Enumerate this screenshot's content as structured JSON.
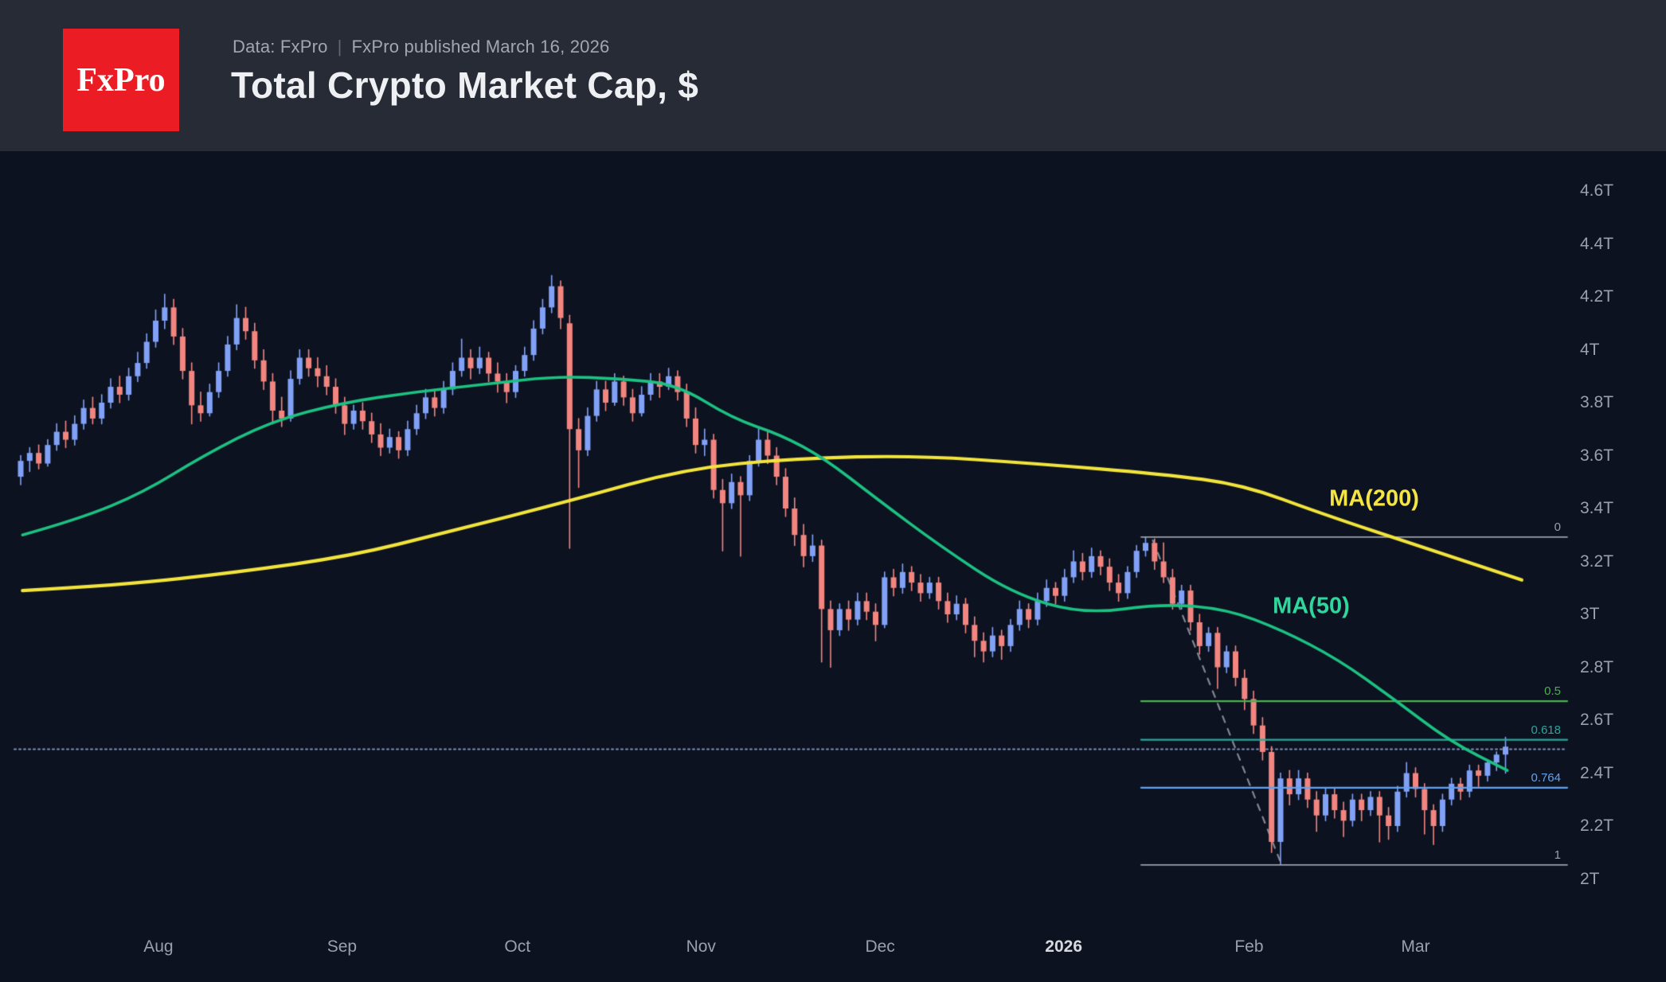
{
  "header": {
    "logo_text": "FxPro",
    "data_source": "Data: FxPro",
    "separator": "|",
    "published": "FxPro published March 16, 2026",
    "title": "Total Crypto Market Cap, $"
  },
  "colors": {
    "header_bg": "#272b36",
    "chart_bg": "#0c1220",
    "logo_bg": "#ec1c24",
    "candle_up": "#81a1f7",
    "candle_down": "#f2857f",
    "ma50_line": "#1dc182",
    "ma50_label": "#2ed79c",
    "ma200_line": "#f2e43c",
    "ma200_label": "#f4e544",
    "fib_gray": "#9b9fa8",
    "fib_half": "#4caf50",
    "fib_618": "#2aa79b",
    "fib_764": "#62a3f0",
    "current_price_dotted": "#7d91be",
    "trend_dashed": "#a0a5af",
    "axis_text": "#9aa0ab",
    "axis_text_bold": "#d6d9de"
  },
  "chart_data": {
    "type": "candlestick",
    "title": "Total Crypto Market Cap, $",
    "unit": "trillion USD",
    "ylim": [
      2.0,
      4.6
    ],
    "grid": false,
    "y_ticks": [
      {
        "label": "4.6T",
        "value": 4.6
      },
      {
        "label": "4.4T",
        "value": 4.4
      },
      {
        "label": "4.2T",
        "value": 4.2
      },
      {
        "label": "4T",
        "value": 4.0
      },
      {
        "label": "3.8T",
        "value": 3.8
      },
      {
        "label": "3.6T",
        "value": 3.6
      },
      {
        "label": "3.4T",
        "value": 3.4
      },
      {
        "label": "3.2T",
        "value": 3.2
      },
      {
        "label": "3T",
        "value": 3.0
      },
      {
        "label": "2.8T",
        "value": 2.8
      },
      {
        "label": "2.6T",
        "value": 2.6
      },
      {
        "label": "2.4T",
        "value": 2.4
      },
      {
        "label": "2.2T",
        "value": 2.2
      },
      {
        "label": "2T",
        "value": 2.0
      }
    ],
    "x_ticks": [
      {
        "label": "Aug",
        "index": 15.3,
        "bold": false
      },
      {
        "label": "Sep",
        "index": 35.7,
        "bold": false
      },
      {
        "label": "Oct",
        "index": 55.2,
        "bold": false
      },
      {
        "label": "Nov",
        "index": 75.6,
        "bold": false
      },
      {
        "label": "Dec",
        "index": 95.5,
        "bold": false
      },
      {
        "label": "2026",
        "index": 115.9,
        "bold": true
      },
      {
        "label": "Feb",
        "index": 136.5,
        "bold": false
      },
      {
        "label": "Mar",
        "index": 155.0,
        "bold": false
      }
    ],
    "candles": [
      [
        3.52,
        3.6,
        3.49,
        3.58
      ],
      [
        3.58,
        3.63,
        3.54,
        3.61
      ],
      [
        3.61,
        3.64,
        3.55,
        3.57
      ],
      [
        3.57,
        3.66,
        3.56,
        3.64
      ],
      [
        3.64,
        3.72,
        3.62,
        3.69
      ],
      [
        3.69,
        3.73,
        3.63,
        3.66
      ],
      [
        3.66,
        3.75,
        3.64,
        3.72
      ],
      [
        3.72,
        3.81,
        3.7,
        3.78
      ],
      [
        3.78,
        3.82,
        3.72,
        3.74
      ],
      [
        3.74,
        3.83,
        3.72,
        3.8
      ],
      [
        3.8,
        3.89,
        3.78,
        3.86
      ],
      [
        3.86,
        3.9,
        3.8,
        3.83
      ],
      [
        3.83,
        3.93,
        3.81,
        3.9
      ],
      [
        3.9,
        3.99,
        3.88,
        3.95
      ],
      [
        3.95,
        4.06,
        3.93,
        4.03
      ],
      [
        4.03,
        4.15,
        4.01,
        4.11
      ],
      [
        4.11,
        4.21,
        4.08,
        4.16
      ],
      [
        4.16,
        4.19,
        4.02,
        4.05
      ],
      [
        4.05,
        4.08,
        3.89,
        3.92
      ],
      [
        3.92,
        3.95,
        3.72,
        3.79
      ],
      [
        3.79,
        3.84,
        3.73,
        3.76
      ],
      [
        3.76,
        3.87,
        3.75,
        3.84
      ],
      [
        3.84,
        3.95,
        3.82,
        3.92
      ],
      [
        3.92,
        4.05,
        3.9,
        4.02
      ],
      [
        4.02,
        4.17,
        4.0,
        4.12
      ],
      [
        4.12,
        4.16,
        4.04,
        4.07
      ],
      [
        4.07,
        4.1,
        3.93,
        3.96
      ],
      [
        3.96,
        4.0,
        3.85,
        3.88
      ],
      [
        3.88,
        3.91,
        3.72,
        3.77
      ],
      [
        3.77,
        3.82,
        3.71,
        3.74
      ],
      [
        3.74,
        3.92,
        3.73,
        3.89
      ],
      [
        3.89,
        4.0,
        3.87,
        3.97
      ],
      [
        3.97,
        4.0,
        3.9,
        3.93
      ],
      [
        3.93,
        3.97,
        3.86,
        3.9
      ],
      [
        3.9,
        3.94,
        3.83,
        3.86
      ],
      [
        3.86,
        3.89,
        3.76,
        3.79
      ],
      [
        3.79,
        3.82,
        3.68,
        3.72
      ],
      [
        3.72,
        3.79,
        3.7,
        3.77
      ],
      [
        3.77,
        3.8,
        3.7,
        3.73
      ],
      [
        3.73,
        3.76,
        3.65,
        3.68
      ],
      [
        3.68,
        3.72,
        3.6,
        3.63
      ],
      [
        3.63,
        3.7,
        3.61,
        3.67
      ],
      [
        3.67,
        3.69,
        3.59,
        3.62
      ],
      [
        3.62,
        3.73,
        3.6,
        3.7
      ],
      [
        3.7,
        3.79,
        3.68,
        3.76
      ],
      [
        3.76,
        3.85,
        3.74,
        3.82
      ],
      [
        3.82,
        3.85,
        3.75,
        3.78
      ],
      [
        3.78,
        3.88,
        3.76,
        3.85
      ],
      [
        3.85,
        3.95,
        3.83,
        3.92
      ],
      [
        3.92,
        4.04,
        3.9,
        3.97
      ],
      [
        3.97,
        4.0,
        3.89,
        3.93
      ],
      [
        3.93,
        4.01,
        3.91,
        3.97
      ],
      [
        3.97,
        3.99,
        3.88,
        3.91
      ],
      [
        3.91,
        3.95,
        3.84,
        3.88
      ],
      [
        3.88,
        3.91,
        3.8,
        3.84
      ],
      [
        3.84,
        3.94,
        3.82,
        3.92
      ],
      [
        3.92,
        4.01,
        3.9,
        3.98
      ],
      [
        3.98,
        4.11,
        3.96,
        4.08
      ],
      [
        4.08,
        4.19,
        4.06,
        4.16
      ],
      [
        4.16,
        4.28,
        4.14,
        4.24
      ],
      [
        4.24,
        4.26,
        4.08,
        4.12
      ],
      [
        4.1,
        4.13,
        3.25,
        3.7
      ],
      [
        3.7,
        3.74,
        3.48,
        3.62
      ],
      [
        3.62,
        3.78,
        3.6,
        3.75
      ],
      [
        3.75,
        3.88,
        3.73,
        3.85
      ],
      [
        3.85,
        3.88,
        3.77,
        3.8
      ],
      [
        3.8,
        3.91,
        3.79,
        3.88
      ],
      [
        3.88,
        3.9,
        3.79,
        3.82
      ],
      [
        3.82,
        3.85,
        3.73,
        3.76
      ],
      [
        3.76,
        3.86,
        3.75,
        3.83
      ],
      [
        3.83,
        3.91,
        3.81,
        3.88
      ],
      [
        3.88,
        3.91,
        3.82,
        3.86
      ],
      [
        3.86,
        3.93,
        3.85,
        3.9
      ],
      [
        3.9,
        3.92,
        3.81,
        3.84
      ],
      [
        3.84,
        3.87,
        3.71,
        3.74
      ],
      [
        3.74,
        3.78,
        3.61,
        3.64
      ],
      [
        3.64,
        3.7,
        3.6,
        3.66
      ],
      [
        3.66,
        3.68,
        3.44,
        3.47
      ],
      [
        3.47,
        3.51,
        3.24,
        3.42
      ],
      [
        3.42,
        3.53,
        3.4,
        3.5
      ],
      [
        3.5,
        3.52,
        3.22,
        3.45
      ],
      [
        3.45,
        3.6,
        3.43,
        3.58
      ],
      [
        3.58,
        3.7,
        3.56,
        3.66
      ],
      [
        3.66,
        3.69,
        3.57,
        3.6
      ],
      [
        3.6,
        3.63,
        3.49,
        3.52
      ],
      [
        3.52,
        3.55,
        3.37,
        3.4
      ],
      [
        3.4,
        3.44,
        3.26,
        3.3
      ],
      [
        3.3,
        3.34,
        3.18,
        3.22
      ],
      [
        3.22,
        3.3,
        3.2,
        3.26
      ],
      [
        3.26,
        3.28,
        2.82,
        3.02
      ],
      [
        3.02,
        3.05,
        2.8,
        2.94
      ],
      [
        2.94,
        3.04,
        2.92,
        3.02
      ],
      [
        3.02,
        3.05,
        2.94,
        2.98
      ],
      [
        2.98,
        3.08,
        2.96,
        3.05
      ],
      [
        3.05,
        3.08,
        2.98,
        3.01
      ],
      [
        3.01,
        3.04,
        2.9,
        2.96
      ],
      [
        2.96,
        3.16,
        2.95,
        3.14
      ],
      [
        3.14,
        3.17,
        3.07,
        3.1
      ],
      [
        3.1,
        3.19,
        3.08,
        3.16
      ],
      [
        3.16,
        3.18,
        3.09,
        3.12
      ],
      [
        3.12,
        3.15,
        3.05,
        3.08
      ],
      [
        3.08,
        3.14,
        3.06,
        3.12
      ],
      [
        3.12,
        3.14,
        3.02,
        3.05
      ],
      [
        3.05,
        3.08,
        2.97,
        3.0
      ],
      [
        3.0,
        3.07,
        2.98,
        3.04
      ],
      [
        3.04,
        3.06,
        2.93,
        2.96
      ],
      [
        2.96,
        2.99,
        2.84,
        2.9
      ],
      [
        2.9,
        2.93,
        2.82,
        2.86
      ],
      [
        2.86,
        2.95,
        2.84,
        2.92
      ],
      [
        2.92,
        2.94,
        2.83,
        2.88
      ],
      [
        2.88,
        2.98,
        2.86,
        2.96
      ],
      [
        2.96,
        3.05,
        2.94,
        3.02
      ],
      [
        3.02,
        3.04,
        2.95,
        2.98
      ],
      [
        2.98,
        3.08,
        2.96,
        3.05
      ],
      [
        3.05,
        3.13,
        3.03,
        3.1
      ],
      [
        3.1,
        3.12,
        3.04,
        3.07
      ],
      [
        3.07,
        3.17,
        3.05,
        3.14
      ],
      [
        3.14,
        3.24,
        3.12,
        3.2
      ],
      [
        3.2,
        3.23,
        3.13,
        3.16
      ],
      [
        3.16,
        3.25,
        3.14,
        3.22
      ],
      [
        3.22,
        3.24,
        3.15,
        3.18
      ],
      [
        3.18,
        3.21,
        3.09,
        3.12
      ],
      [
        3.12,
        3.15,
        3.05,
        3.08
      ],
      [
        3.08,
        3.18,
        3.06,
        3.16
      ],
      [
        3.16,
        3.26,
        3.14,
        3.24
      ],
      [
        3.24,
        3.29,
        3.22,
        3.27
      ],
      [
        3.27,
        3.285,
        3.17,
        3.2
      ],
      [
        3.2,
        3.27,
        3.12,
        3.14
      ],
      [
        3.14,
        3.17,
        3.02,
        3.04
      ],
      [
        3.04,
        3.11,
        3.02,
        3.09
      ],
      [
        3.09,
        3.11,
        2.94,
        2.97
      ],
      [
        2.97,
        3.0,
        2.85,
        2.88
      ],
      [
        2.88,
        2.95,
        2.86,
        2.93
      ],
      [
        2.93,
        2.95,
        2.72,
        2.8
      ],
      [
        2.8,
        2.88,
        2.78,
        2.86
      ],
      [
        2.86,
        2.88,
        2.73,
        2.76
      ],
      [
        2.76,
        2.79,
        2.64,
        2.68
      ],
      [
        2.68,
        2.71,
        2.55,
        2.58
      ],
      [
        2.58,
        2.61,
        2.45,
        2.48
      ],
      [
        2.48,
        2.5,
        2.1,
        2.14
      ],
      [
        2.14,
        2.4,
        2.055,
        2.38
      ],
      [
        2.38,
        2.41,
        2.28,
        2.32
      ],
      [
        2.32,
        2.41,
        2.3,
        2.38
      ],
      [
        2.38,
        2.4,
        2.27,
        2.3
      ],
      [
        2.3,
        2.33,
        2.18,
        2.24
      ],
      [
        2.24,
        2.34,
        2.22,
        2.32
      ],
      [
        2.32,
        2.34,
        2.23,
        2.26
      ],
      [
        2.26,
        2.29,
        2.16,
        2.22
      ],
      [
        2.22,
        2.32,
        2.2,
        2.3
      ],
      [
        2.3,
        2.32,
        2.22,
        2.26
      ],
      [
        2.26,
        2.33,
        2.24,
        2.31
      ],
      [
        2.31,
        2.33,
        2.14,
        2.24
      ],
      [
        2.24,
        2.27,
        2.15,
        2.2
      ],
      [
        2.2,
        2.35,
        2.18,
        2.33
      ],
      [
        2.33,
        2.44,
        2.31,
        2.4
      ],
      [
        2.4,
        2.42,
        2.31,
        2.34
      ],
      [
        2.34,
        2.36,
        2.17,
        2.26
      ],
      [
        2.26,
        2.28,
        2.13,
        2.2
      ],
      [
        2.2,
        2.32,
        2.18,
        2.3
      ],
      [
        2.3,
        2.38,
        2.28,
        2.36
      ],
      [
        2.36,
        2.38,
        2.3,
        2.33
      ],
      [
        2.33,
        2.43,
        2.31,
        2.41
      ],
      [
        2.41,
        2.43,
        2.35,
        2.39
      ],
      [
        2.39,
        2.45,
        2.37,
        2.44
      ],
      [
        2.44,
        2.48,
        2.41,
        2.47
      ],
      [
        2.47,
        2.535,
        2.4,
        2.5
      ]
    ],
    "ma50": {
      "label": "MA(50)",
      "label_pos": {
        "index": 143.4,
        "price": 3.03
      },
      "points": [
        [
          0.2,
          3.3
        ],
        [
          6.5,
          3.36
        ],
        [
          13.6,
          3.46
        ],
        [
          20.3,
          3.6
        ],
        [
          27.8,
          3.73
        ],
        [
          35.8,
          3.8
        ],
        [
          43.7,
          3.84
        ],
        [
          51.7,
          3.87
        ],
        [
          59.6,
          3.9
        ],
        [
          66.7,
          3.89
        ],
        [
          72.9,
          3.87
        ],
        [
          79.1,
          3.74
        ],
        [
          84.4,
          3.68
        ],
        [
          89.3,
          3.59
        ],
        [
          95.0,
          3.44
        ],
        [
          102.1,
          3.26
        ],
        [
          110.1,
          3.08
        ],
        [
          118.1,
          3.0
        ],
        [
          126.9,
          3.04
        ],
        [
          134.0,
          3.02
        ],
        [
          140.2,
          2.94
        ],
        [
          146.4,
          2.83
        ],
        [
          152.6,
          2.68
        ],
        [
          158.8,
          2.52
        ],
        [
          165.2,
          2.41
        ]
      ]
    },
    "ma200": {
      "label": "MA(200)",
      "label_pos": {
        "index": 150.4,
        "price": 3.436
      },
      "points": [
        [
          0.2,
          3.09
        ],
        [
          11,
          3.11
        ],
        [
          24.2,
          3.16
        ],
        [
          36.6,
          3.22
        ],
        [
          47.3,
          3.31
        ],
        [
          61.2,
          3.43
        ],
        [
          73.8,
          3.55
        ],
        [
          86.2,
          3.59
        ],
        [
          99.5,
          3.6
        ],
        [
          112.7,
          3.57
        ],
        [
          126.9,
          3.53
        ],
        [
          135.8,
          3.49
        ],
        [
          144.6,
          3.38
        ],
        [
          156.1,
          3.25
        ],
        [
          166.8,
          3.13
        ]
      ]
    },
    "fib": {
      "start_index": 124.5,
      "levels": [
        {
          "label": "0",
          "value": 3.292,
          "color_key": "fib_gray"
        },
        {
          "label": "0.5",
          "value": 2.672,
          "color_key": "fib_half"
        },
        {
          "label": "0.618",
          "value": 2.526,
          "color_key": "fib_618"
        },
        {
          "label": "0.764",
          "value": 2.345,
          "color_key": "fib_764"
        },
        {
          "label": "1",
          "value": 2.053,
          "color_key": "fib_gray"
        }
      ]
    },
    "trend_line": {
      "from": {
        "index": 125.8,
        "price": 3.28
      },
      "to": {
        "index": 140.1,
        "price": 2.055
      }
    },
    "current_price": 2.49
  }
}
